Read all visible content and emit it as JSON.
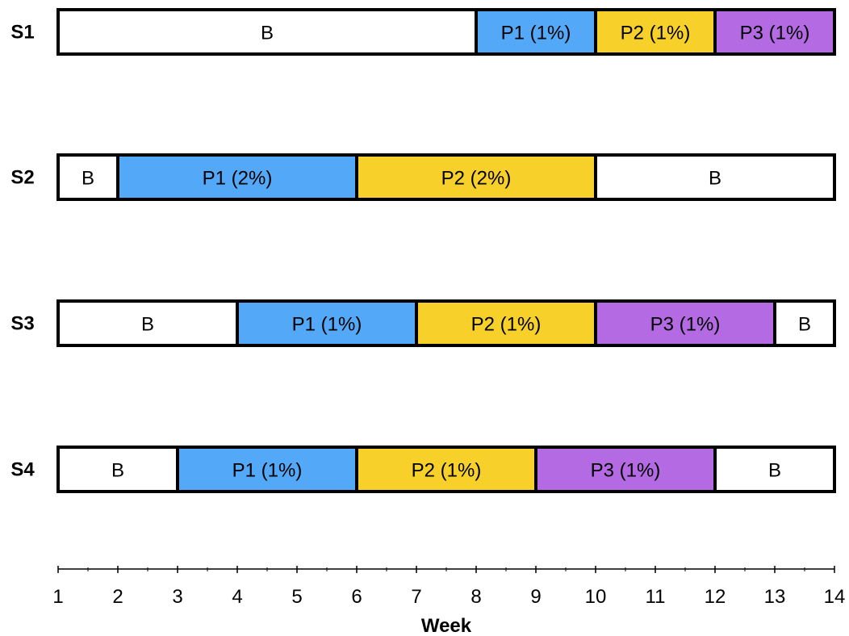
{
  "chart_data": {
    "type": "bar",
    "orientation": "horizontal-timeline",
    "xlabel": "Week",
    "xlim": [
      1,
      14
    ],
    "xticks": [
      1,
      2,
      3,
      4,
      5,
      6,
      7,
      8,
      9,
      10,
      11,
      12,
      13,
      14
    ],
    "colors": {
      "B": "#ffffff",
      "P1": "#54a8f8",
      "P2": "#f7d12a",
      "P3": "#b36ae3"
    },
    "rows": [
      {
        "label": "S1",
        "segments": [
          {
            "phase": "B",
            "text": "B",
            "start": 1,
            "end": 8
          },
          {
            "phase": "P1",
            "text": "P1 (1%)",
            "start": 8,
            "end": 10
          },
          {
            "phase": "P2",
            "text": "P2 (1%)",
            "start": 10,
            "end": 12
          },
          {
            "phase": "P3",
            "text": "P3 (1%)",
            "start": 12,
            "end": 14
          }
        ]
      },
      {
        "label": "S2",
        "segments": [
          {
            "phase": "B",
            "text": "B",
            "start": 1,
            "end": 2
          },
          {
            "phase": "P1",
            "text": "P1 (2%)",
            "start": 2,
            "end": 6
          },
          {
            "phase": "P2",
            "text": "P2 (2%)",
            "start": 6,
            "end": 10
          },
          {
            "phase": "B",
            "text": "B",
            "start": 10,
            "end": 14
          }
        ]
      },
      {
        "label": "S3",
        "segments": [
          {
            "phase": "B",
            "text": "B",
            "start": 1,
            "end": 4
          },
          {
            "phase": "P1",
            "text": "P1 (1%)",
            "start": 4,
            "end": 7
          },
          {
            "phase": "P2",
            "text": "P2 (1%)",
            "start": 7,
            "end": 10
          },
          {
            "phase": "P3",
            "text": "P3 (1%)",
            "start": 10,
            "end": 13
          },
          {
            "phase": "B",
            "text": "B",
            "start": 13,
            "end": 14
          }
        ]
      },
      {
        "label": "S4",
        "segments": [
          {
            "phase": "B",
            "text": "B",
            "start": 1,
            "end": 3
          },
          {
            "phase": "P1",
            "text": "P1 (1%)",
            "start": 3,
            "end": 6
          },
          {
            "phase": "P2",
            "text": "P2 (1%)",
            "start": 6,
            "end": 9
          },
          {
            "phase": "P3",
            "text": "P3 (1%)",
            "start": 9,
            "end": 12
          },
          {
            "phase": "B",
            "text": "B",
            "start": 12,
            "end": 14
          }
        ]
      }
    ]
  }
}
